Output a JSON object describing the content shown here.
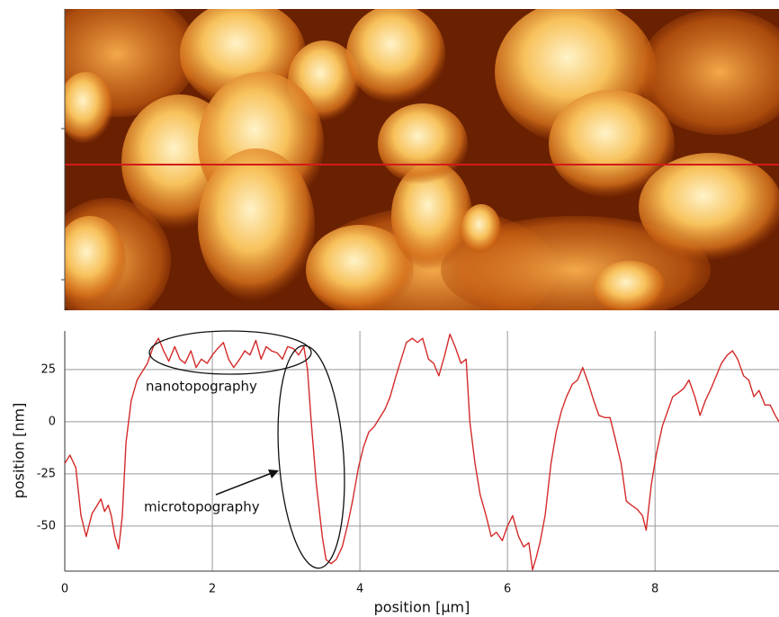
{
  "chart_data": {
    "type": "line",
    "xlabel": "position [µm]",
    "ylabel": "position [nm]",
    "annotations": [
      "nanotopography",
      "microtopography"
    ],
    "x": [
      0,
      0.07,
      0.15,
      0.22,
      0.29,
      0.37,
      0.44,
      0.49,
      0.54,
      0.59,
      0.63,
      0.68,
      0.73,
      0.78,
      0.83,
      0.9,
      0.98,
      1.05,
      1.12,
      1.2,
      1.27,
      1.34,
      1.41,
      1.49,
      1.56,
      1.63,
      1.71,
      1.78,
      1.85,
      1.93,
      2.0,
      2.07,
      2.15,
      2.22,
      2.29,
      2.37,
      2.44,
      2.51,
      2.59,
      2.66,
      2.73,
      2.8,
      2.88,
      2.95,
      3.02,
      3.1,
      3.17,
      3.24,
      3.29,
      3.34,
      3.41,
      3.49,
      3.54,
      3.61,
      3.68,
      3.76,
      3.83,
      3.9,
      3.98,
      4.05,
      4.12,
      4.2,
      4.27,
      4.34,
      4.41,
      4.49,
      4.56,
      4.63,
      4.71,
      4.78,
      4.85,
      4.93,
      5.0,
      5.07,
      5.15,
      5.22,
      5.29,
      5.37,
      5.44,
      5.49,
      5.56,
      5.63,
      5.71,
      5.78,
      5.85,
      5.93,
      6.0,
      6.07,
      6.15,
      6.22,
      6.29,
      6.34,
      6.39,
      6.44,
      6.51,
      6.59,
      6.66,
      6.73,
      6.8,
      6.88,
      6.95,
      7.02,
      7.1,
      7.17,
      7.24,
      7.32,
      7.39,
      7.46,
      7.54,
      7.61,
      7.68,
      7.76,
      7.83,
      7.88,
      7.95,
      8.02,
      8.1,
      8.17,
      8.24,
      8.32,
      8.39,
      8.46,
      8.54,
      8.61,
      8.68,
      8.76,
      8.83,
      8.9,
      8.98,
      9.05,
      9.12,
      9.2,
      9.27,
      9.34,
      9.41,
      9.49,
      9.56,
      9.63,
      9.68
    ],
    "series": [
      {
        "color": "#d42a2a",
        "values": [
          -20,
          -16,
          -22,
          -45,
          -55,
          -44,
          -40,
          -37,
          -43,
          -40,
          -45,
          -55,
          -61,
          -45,
          -10,
          10,
          20,
          24,
          28,
          36,
          40,
          34,
          29,
          36,
          30,
          28,
          34,
          26,
          30,
          28,
          32,
          35,
          38,
          30,
          26,
          30,
          34,
          32,
          39,
          30,
          36,
          34,
          33,
          30,
          36,
          35,
          32,
          36,
          25,
          0,
          -30,
          -55,
          -66,
          -68,
          -66,
          -60,
          -50,
          -38,
          -22,
          -12,
          -5,
          -2,
          2,
          6,
          12,
          22,
          30,
          38,
          40,
          38,
          40,
          30,
          28,
          22,
          32,
          42,
          36,
          28,
          30,
          0,
          -20,
          -35,
          -45,
          -55,
          -53,
          -57,
          -50,
          -45,
          -55,
          -60,
          -58,
          -71,
          -65,
          -58,
          -45,
          -20,
          -5,
          5,
          12,
          18,
          20,
          26,
          18,
          10,
          3,
          2,
          2,
          -8,
          -20,
          -38,
          -40,
          -42,
          -45,
          -52,
          -30,
          -15,
          -2,
          5,
          12,
          14,
          16,
          20,
          12,
          3,
          10,
          16,
          22,
          28,
          32,
          34,
          30,
          22,
          20,
          12,
          15,
          8,
          8,
          3,
          0
        ]
      }
    ],
    "xlim": [
      0,
      9.68
    ],
    "ylim": [
      -71.6,
      43.5
    ],
    "xticks": [
      0,
      2,
      4,
      6,
      8
    ],
    "yticks": [
      -50,
      -25,
      0,
      25
    ],
    "grid": true
  }
}
